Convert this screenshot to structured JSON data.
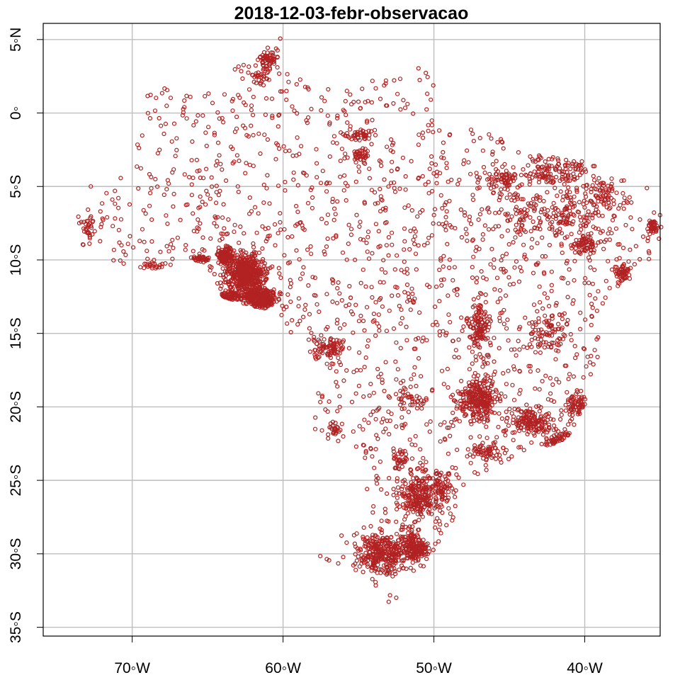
{
  "chart_data": {
    "type": "scatter",
    "title": "2018-12-03-febr-observacao",
    "xlabel": "",
    "ylabel": "",
    "xlim": [
      -75.9,
      -35.0
    ],
    "ylim": [
      -35.6,
      6.1
    ],
    "grid": true,
    "x_ticks": [
      {
        "value": -70,
        "label": "70◦W"
      },
      {
        "value": -60,
        "label": "60◦W"
      },
      {
        "value": -50,
        "label": "50◦W"
      },
      {
        "value": -40,
        "label": "40◦W"
      }
    ],
    "y_ticks": [
      {
        "value": 5,
        "label": "5◦N"
      },
      {
        "value": 0,
        "label": "0◦"
      },
      {
        "value": -5,
        "label": "5◦S"
      },
      {
        "value": -10,
        "label": "10◦S"
      },
      {
        "value": -15,
        "label": "15◦S"
      },
      {
        "value": -20,
        "label": "20◦S"
      },
      {
        "value": -25,
        "label": "25◦S"
      },
      {
        "value": -30,
        "label": "30◦S"
      },
      {
        "value": -35,
        "label": "35◦S"
      }
    ],
    "marker_color": "#b22222",
    "grid_color": "#bebebe",
    "dense_regions": [
      {
        "lon": -62.5,
        "lat": -11.0,
        "spread": [
          1.2,
          1.2
        ],
        "n": 500
      },
      {
        "lon": -61.5,
        "lat": -12.6,
        "spread": [
          0.9,
          0.6
        ],
        "n": 300
      },
      {
        "lon": -63.8,
        "lat": -9.7,
        "spread": [
          0.5,
          0.5
        ],
        "n": 140
      },
      {
        "lon": -65.5,
        "lat": -9.9,
        "spread": [
          0.6,
          0.15
        ],
        "n": 40
      },
      {
        "lon": -63.5,
        "lat": -12.5,
        "spread": [
          0.8,
          0.3
        ],
        "n": 120
      },
      {
        "lon": -61.0,
        "lat": 3.6,
        "spread": [
          0.5,
          0.5
        ],
        "n": 60
      },
      {
        "lon": -61.5,
        "lat": 2.5,
        "spread": [
          0.5,
          0.5
        ],
        "n": 25
      },
      {
        "lon": -55.0,
        "lat": -1.5,
        "spread": [
          1.0,
          0.3
        ],
        "n": 40
      },
      {
        "lon": -54.8,
        "lat": -3.0,
        "spread": [
          0.6,
          0.5
        ],
        "n": 40
      },
      {
        "lon": -52.2,
        "lat": -23.5,
        "spread": [
          0.5,
          0.5
        ],
        "n": 30
      },
      {
        "lon": -53.5,
        "lat": -30.0,
        "spread": [
          1.4,
          1.2
        ],
        "n": 280
      },
      {
        "lon": -51.5,
        "lat": -29.5,
        "spread": [
          0.8,
          1.0
        ],
        "n": 120
      },
      {
        "lon": -51.0,
        "lat": -26.0,
        "spread": [
          1.2,
          1.3
        ],
        "n": 220
      },
      {
        "lon": -47.0,
        "lat": -19.5,
        "spread": [
          1.2,
          1.2
        ],
        "n": 260
      },
      {
        "lon": -47.0,
        "lat": -14.5,
        "spread": [
          0.6,
          1.4
        ],
        "n": 120
      },
      {
        "lon": -41.5,
        "lat": -22.5,
        "spread": [
          1.0,
          0.6
        ],
        "n": 180
      },
      {
        "lon": -43.5,
        "lat": -21.0,
        "spread": [
          1.4,
          0.7
        ],
        "n": 140
      },
      {
        "lon": -40.5,
        "lat": -20.0,
        "spread": [
          0.8,
          1.0
        ],
        "n": 80
      },
      {
        "lon": -37.5,
        "lat": -10.8,
        "spread": [
          0.4,
          0.5
        ],
        "n": 60
      },
      {
        "lon": -40.0,
        "lat": -9.0,
        "spread": [
          0.8,
          0.6
        ],
        "n": 60
      },
      {
        "lon": -35.5,
        "lat": -7.8,
        "spread": [
          0.4,
          0.4
        ],
        "n": 40
      },
      {
        "lon": -57.0,
        "lat": -16.0,
        "spread": [
          1.0,
          0.6
        ],
        "n": 80
      },
      {
        "lon": -56.5,
        "lat": -21.5,
        "spread": [
          0.4,
          0.4
        ],
        "n": 25
      },
      {
        "lon": -51.5,
        "lat": -19.5,
        "spread": [
          0.8,
          0.5
        ],
        "n": 30
      },
      {
        "lon": -45.5,
        "lat": -4.5,
        "spread": [
          1.0,
          0.6
        ],
        "n": 60
      },
      {
        "lon": -42.0,
        "lat": -4.0,
        "spread": [
          2.0,
          1.0
        ],
        "n": 110
      },
      {
        "lon": -41.0,
        "lat": -7.0,
        "spread": [
          2.0,
          1.5
        ],
        "n": 110
      },
      {
        "lon": -44.0,
        "lat": -7.0,
        "spread": [
          1.5,
          1.5
        ],
        "n": 60
      },
      {
        "lon": -38.5,
        "lat": -5.5,
        "spread": [
          1.0,
          1.0
        ],
        "n": 60
      },
      {
        "lon": -42.5,
        "lat": -15.0,
        "spread": [
          1.5,
          1.5
        ],
        "n": 80
      },
      {
        "lon": -46.5,
        "lat": -23.0,
        "spread": [
          1.0,
          0.5
        ],
        "n": 60
      },
      {
        "lon": -49.5,
        "lat": -25.5,
        "spread": [
          0.8,
          1.0
        ],
        "n": 60
      },
      {
        "lon": -68.5,
        "lat": -10.5,
        "spread": [
          0.8,
          0.4
        ],
        "n": 25
      },
      {
        "lon": -73.0,
        "lat": -7.8,
        "spread": [
          0.8,
          0.8
        ],
        "n": 30
      },
      {
        "lon": -51.0,
        "lat": -29.8,
        "spread": [
          0.6,
          0.7
        ],
        "n": 80
      }
    ],
    "sparse_fill": {
      "n": 1600
    }
  }
}
